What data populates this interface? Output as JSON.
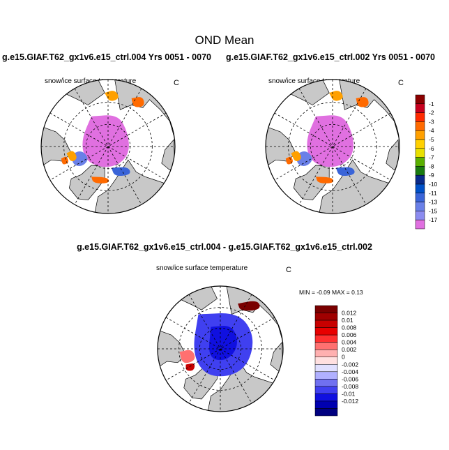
{
  "page": {
    "title": "OND Mean",
    "run_a_title": "g.e15.GIAF.T62_gx1v6.e15_ctrl.004  Yrs 0051 - 0070",
    "run_b_title": "g.e15.GIAF.T62_gx1v6.e15_ctrl.002  Yrs 0051 - 0070",
    "diff_title": "g.e15.GIAF.T62_gx1v6.e15_ctrl.004 - g.e15.GIAF.T62_gx1v6.e15_ctrl.002"
  },
  "panels": {
    "left": {
      "variable_label": "snow/ice surface temperature",
      "units": "C"
    },
    "right": {
      "variable_label": "snow/ice surface temperature",
      "units": "C"
    },
    "diff": {
      "variable_label": "snow/ice surface temperature",
      "units": "C",
      "minmax_text": "MIN =  -0.09 MAX =   0.13"
    }
  },
  "colors": {
    "land": "#c8c8c8",
    "ocean": "#ffffff",
    "graticule": "#000000"
  },
  "chart_data": [
    {
      "type": "heatmap",
      "panel": "left",
      "projection": "north-polar-stereographic",
      "title": "snow/ice surface temperature",
      "units": "C"
    },
    {
      "type": "heatmap",
      "panel": "right",
      "projection": "north-polar-stereographic",
      "title": "snow/ice surface temperature",
      "units": "C"
    },
    {
      "type": "heatmap",
      "panel": "diff",
      "projection": "north-polar-stereographic",
      "title": "snow/ice surface temperature",
      "units": "C",
      "min": -0.09,
      "max": 0.13
    }
  ],
  "colorbars": {
    "absolute": {
      "labels": [
        "-1",
        "-2",
        "-3",
        "-4",
        "-5",
        "-6",
        "-7",
        "-8",
        "-9",
        "-10",
        "-11",
        "-13",
        "-15",
        "-17"
      ],
      "colors": [
        "#8b0000",
        "#c8001e",
        "#ff2a00",
        "#ff6a00",
        "#ffa000",
        "#ffd000",
        "#e8e000",
        "#5ab000",
        "#1a7a10",
        "#0a2a8a",
        "#0050c8",
        "#3a64d8",
        "#6a80e8",
        "#8c8cf0",
        "#e070e0"
      ]
    },
    "difference": {
      "labels": [
        "0.012",
        "0.01",
        "0.008",
        "0.006",
        "0.004",
        "0.002",
        "0",
        "-0.002",
        "-0.004",
        "-0.006",
        "-0.008",
        "-0.01",
        "-0.012"
      ],
      "colors": [
        "#7a0000",
        "#a00000",
        "#c80000",
        "#e80000",
        "#ff3030",
        "#ff7070",
        "#ffb0b0",
        "#ffe0e0",
        "#e0e0ff",
        "#b0b0ff",
        "#7070f0",
        "#4040f0",
        "#1010e0",
        "#0000b0",
        "#000080"
      ]
    }
  }
}
